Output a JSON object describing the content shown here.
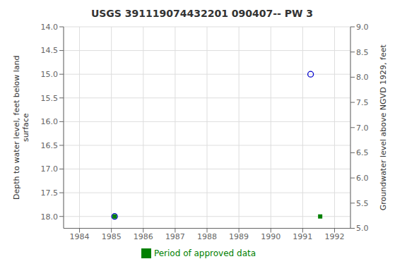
{
  "chart_data": {
    "type": "scatter",
    "title": "USGS 391119074432201 090407-- PW 3",
    "y_label": "Depth to water level, feet below land\nsurface",
    "y2_label": "Groundwater level above NGVD 1929, feet",
    "xlim": [
      1983.5,
      1992.5
    ],
    "ylim": [
      18.25,
      14.0
    ],
    "y2lim": [
      5.0,
      9.0
    ],
    "xticks": [
      1984,
      1985,
      1986,
      1987,
      1988,
      1989,
      1990,
      1991,
      1992
    ],
    "yticks": [
      {
        "value": 14.0,
        "label": "14.0"
      },
      14.5,
      {
        "value": 15.0,
        "label": "15.0"
      },
      15.5,
      {
        "value": 16.0,
        "label": "16.0"
      },
      16.5,
      {
        "value": 17.0,
        "label": "17.0"
      },
      17.5,
      {
        "value": 18.0,
        "label": "18.0"
      }
    ],
    "y2ticks": [
      {
        "value": 9.0,
        "label": "9.0"
      },
      8.5,
      {
        "value": 8.0,
        "label": "8.0"
      },
      7.5,
      {
        "value": 7.0,
        "label": "7.0"
      },
      6.5,
      {
        "value": 6.0,
        "label": "6.0"
      },
      5.5,
      {
        "value": 5.0,
        "label": "5.0"
      }
    ],
    "grid": true,
    "legend": "bottom",
    "series": [
      {
        "color": "#0000cc",
        "marker": "open_circle",
        "x": [
          1985.1,
          1991.25
        ],
        "values": [
          18.0,
          15.0
        ]
      },
      {
        "name": "Period of approved data",
        "color": "#008000",
        "marker": "square",
        "x": [
          1985.1,
          1991.55
        ],
        "values": [
          18.0,
          18.0
        ]
      }
    ]
  }
}
